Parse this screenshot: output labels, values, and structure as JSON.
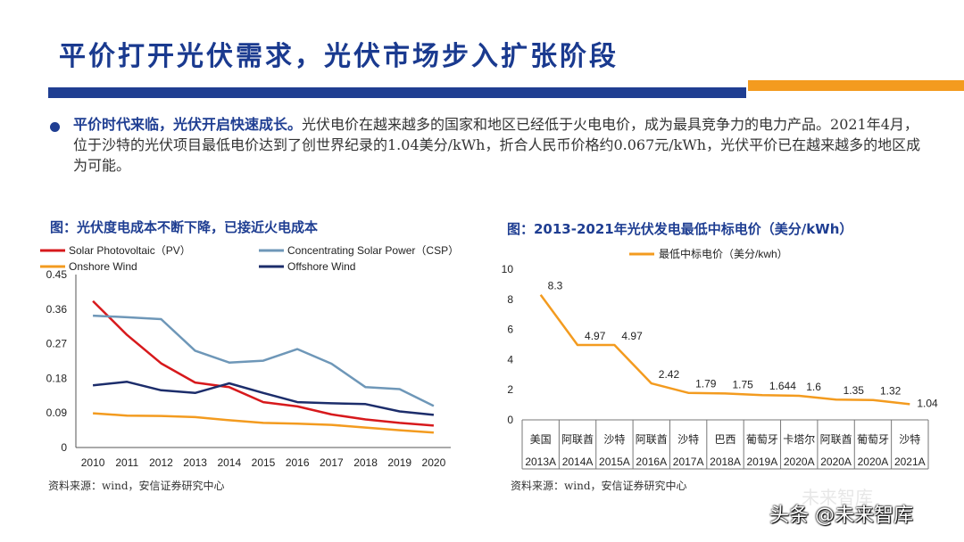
{
  "header": {
    "title": "平价打开光伏需求，光伏市场步入扩张阶段"
  },
  "colors": {
    "brand_blue": "#1f3e92",
    "accent_orange": "#f39b1f"
  },
  "bullet": {
    "lead": "平价时代来临，光伏开启快速成长。",
    "body": "光伏电价在越来越多的国家和地区已经低于火电电价，成为最具竞争力的电力产品。2021年4月，位于沙特的光伏项目最低电价达到了创世界纪录的1.04美分/kWh，折合人民币价格约0.067元/kWh，光伏平价已在越来越多的地区成为可能。"
  },
  "figure_left": {
    "caption": "图：光伏度电成本不断下降，已接近火电成本",
    "source": "资料来源：wind，安信证券研究中心"
  },
  "figure_right": {
    "caption": "图：2013-2021年光伏发电最低中标电价（美分/kWh）",
    "source": "资料来源：wind，安信证券研究中心"
  },
  "watermark": {
    "text": "头条 @未来智库",
    "faint": "未来智库"
  },
  "chart_data": [
    {
      "type": "line",
      "x": [
        2010,
        2011,
        2012,
        2013,
        2014,
        2015,
        2016,
        2017,
        2018,
        2019,
        2020
      ],
      "xtick_labels": [
        "2010",
        "2011",
        "2012",
        "2013",
        "2014",
        "2015",
        "2016",
        "2017",
        "2018",
        "2019",
        "2020"
      ],
      "ylim": [
        0,
        0.45
      ],
      "yticks": [
        0,
        0.09,
        0.18,
        0.27,
        0.36,
        0.45
      ],
      "ytick_labels": [
        "0",
        "0.09",
        "0.18",
        "0.27",
        "0.36",
        "0.45"
      ],
      "grid": false,
      "legend": "top",
      "series": [
        {
          "name": "Solar Photovoltaic（PV）",
          "color": "#d7191c",
          "values": [
            0.381,
            0.293,
            0.219,
            0.169,
            0.157,
            0.118,
            0.107,
            0.086,
            0.073,
            0.064,
            0.057
          ]
        },
        {
          "name": "Concentrating Solar Power（CSP）",
          "color": "#6e97b8",
          "values": [
            0.343,
            0.339,
            0.334,
            0.252,
            0.221,
            0.226,
            0.256,
            0.218,
            0.157,
            0.152,
            0.108
          ]
        },
        {
          "name": "Onshore Wind",
          "color": "#f39b1f",
          "values": [
            0.089,
            0.083,
            0.082,
            0.079,
            0.071,
            0.064,
            0.062,
            0.059,
            0.052,
            0.045,
            0.039
          ]
        },
        {
          "name": "Offshore Wind",
          "color": "#1c2d6b",
          "values": [
            0.162,
            0.171,
            0.149,
            0.142,
            0.167,
            0.142,
            0.118,
            0.115,
            0.113,
            0.094,
            0.085
          ]
        }
      ]
    },
    {
      "type": "line",
      "categories_top": [
        "美国",
        "阿联酋",
        "沙特",
        "阿联酋",
        "沙特",
        "巴西",
        "葡萄牙",
        "卡塔尔",
        "阿联酋",
        "葡萄牙",
        "沙特"
      ],
      "categories_bottom": [
        "2013A",
        "2014A",
        "2015A",
        "2016A",
        "2017A",
        "2018A",
        "2019A",
        "2020A",
        "2020A",
        "2020A",
        "2021A"
      ],
      "ylim": [
        0,
        10
      ],
      "yticks": [
        0,
        2,
        4,
        6,
        8,
        10
      ],
      "ytick_labels": [
        "0",
        "2",
        "4",
        "6",
        "8",
        "10"
      ],
      "grid": false,
      "legend": "top",
      "series": [
        {
          "name": "最低中标电价（美分/kwh）",
          "color": "#f39b1f",
          "values": [
            8.3,
            4.97,
            4.97,
            2.42,
            1.79,
            1.75,
            1.644,
            1.6,
            1.35,
            1.32,
            1.04
          ],
          "labels": [
            "8.3",
            "4.97",
            "4.97",
            "2.42",
            "1.79",
            "1.75",
            "1.644",
            "1.6",
            "1.35",
            "1.32",
            "1.04"
          ]
        }
      ]
    }
  ]
}
